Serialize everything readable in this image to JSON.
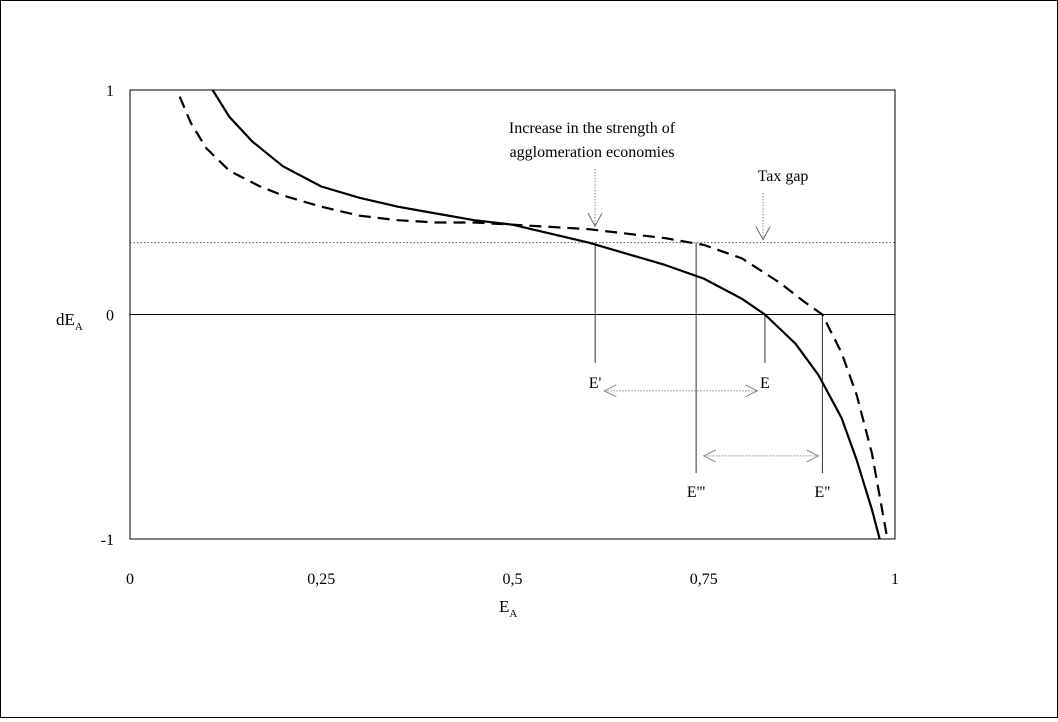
{
  "chart_data": {
    "type": "line",
    "xlabel": {
      "main": "E",
      "sub": "A"
    },
    "ylabel": {
      "main": "dE",
      "sub": "A"
    },
    "xlim": [
      0,
      1
    ],
    "ylim": [
      -1,
      1
    ],
    "x_ticks": [
      {
        "v": 0,
        "label": "0"
      },
      {
        "v": 0.25,
        "label": "0,25"
      },
      {
        "v": 0.5,
        "label": "0,5"
      },
      {
        "v": 0.75,
        "label": "0,75"
      },
      {
        "v": 1,
        "label": "1"
      }
    ],
    "y_ticks": [
      {
        "v": 1,
        "label": "1"
      },
      {
        "v": 0,
        "label": "0"
      },
      {
        "v": -1,
        "label": "-1"
      }
    ],
    "grid": false,
    "legend": "none",
    "series": [
      {
        "style": "solid",
        "x": [
          0.108,
          0.13,
          0.16,
          0.2,
          0.25,
          0.3,
          0.35,
          0.4,
          0.45,
          0.5,
          0.55,
          0.6,
          0.65,
          0.7,
          0.75,
          0.8,
          0.83,
          0.87,
          0.9,
          0.93,
          0.95,
          0.97,
          0.98
        ],
        "y": [
          1.0,
          0.88,
          0.77,
          0.66,
          0.57,
          0.52,
          0.48,
          0.45,
          0.42,
          0.4,
          0.36,
          0.32,
          0.27,
          0.22,
          0.16,
          0.07,
          0.0,
          -0.13,
          -0.27,
          -0.46,
          -0.65,
          -0.87,
          -1.0
        ]
      },
      {
        "style": "dashed",
        "x": [
          0.065,
          0.08,
          0.1,
          0.13,
          0.17,
          0.2,
          0.25,
          0.3,
          0.35,
          0.4,
          0.45,
          0.5,
          0.55,
          0.6,
          0.65,
          0.7,
          0.75,
          0.8,
          0.85,
          0.88,
          0.905,
          0.93,
          0.95,
          0.97,
          0.99
        ],
        "y": [
          0.97,
          0.85,
          0.74,
          0.64,
          0.57,
          0.53,
          0.48,
          0.44,
          0.42,
          0.41,
          0.41,
          0.4,
          0.39,
          0.38,
          0.36,
          0.34,
          0.31,
          0.25,
          0.14,
          0.06,
          0.0,
          -0.17,
          -0.36,
          -0.62,
          -1.0
        ]
      }
    ],
    "reference_lines": [
      {
        "axis": "y",
        "v": 0.32,
        "style": "dotted"
      },
      {
        "axis": "y",
        "v": 0,
        "style": "solid"
      }
    ],
    "points": [
      {
        "label": "E'",
        "x": 0.608,
        "y_top": 0.32
      },
      {
        "label": "E",
        "x": 0.83,
        "y_top": 0.0
      },
      {
        "label": "E'''",
        "x": 0.74,
        "y_top": 0.32
      },
      {
        "label": "E''",
        "x": 0.905,
        "y_top": 0.0
      }
    ],
    "arrows": [
      {
        "from": 0.62,
        "to": 0.82,
        "y": -0.34
      },
      {
        "from": 0.75,
        "to": 0.9,
        "y": -0.63
      }
    ],
    "annotations": [
      {
        "lines": [
          "Increase in the strength of",
          "agglomeration economies"
        ],
        "target_x": 0.608,
        "target_y": 0.38
      },
      {
        "lines": [
          "Tax gap"
        ],
        "target_x": 0.825,
        "target_y": 0.32
      }
    ]
  }
}
